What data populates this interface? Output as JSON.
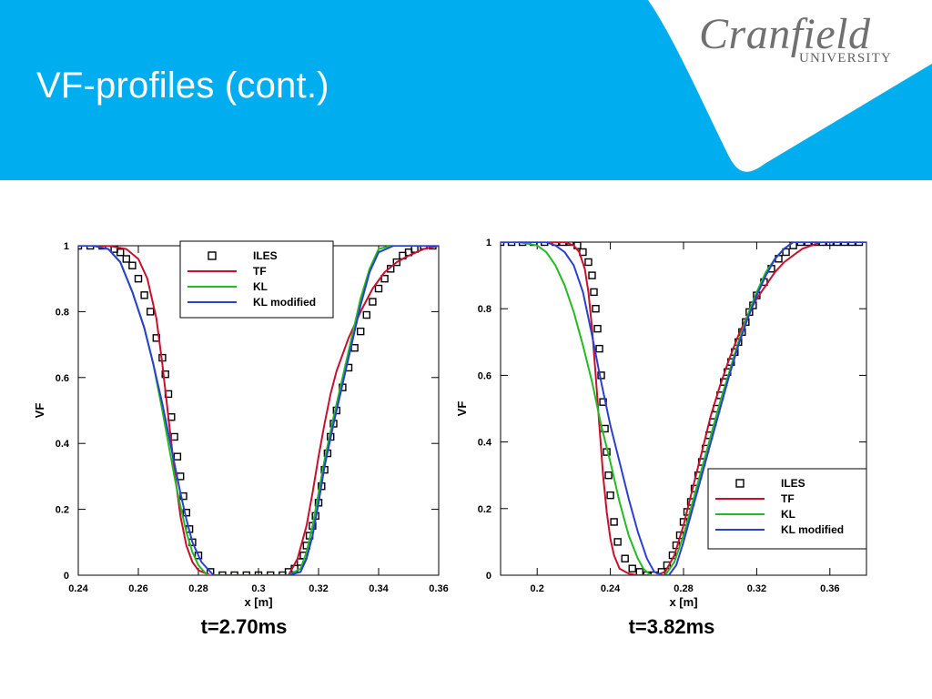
{
  "slide": {
    "title": "VF-profiles (cont.)",
    "banner_color": "#00AEEF"
  },
  "logo": {
    "word": "Cranfield",
    "sub": "UNIVERSITY"
  },
  "captions": [
    "t=2.70ms",
    "t=3.82ms"
  ],
  "chart_data": [
    {
      "type": "line",
      "xlabel": "x [m]",
      "ylabel": "VF",
      "xlim": [
        0.24,
        0.36
      ],
      "ylim": [
        0,
        1
      ],
      "xticks": [
        0.24,
        0.26,
        0.28,
        0.3,
        0.32,
        0.34,
        0.36
      ],
      "xtick_labels": [
        "0.24",
        "0.26",
        "0.28",
        "0.3",
        "0.32",
        "0.34",
        "0.36"
      ],
      "yticks": [
        0,
        0.2,
        0.4,
        0.6,
        0.8,
        1
      ],
      "ytick_labels": [
        "0",
        "0.2",
        "0.4",
        "0.6",
        "0.8",
        "1"
      ],
      "grid": false,
      "legend_position": "top-center",
      "series": [
        {
          "name": "ILES",
          "kind": "marker",
          "color": "#000000",
          "x": [
            0.24,
            0.244,
            0.248,
            0.252,
            0.254,
            0.256,
            0.258,
            0.26,
            0.262,
            0.264,
            0.266,
            0.268,
            0.269,
            0.27,
            0.271,
            0.272,
            0.273,
            0.274,
            0.275,
            0.276,
            0.277,
            0.278,
            0.28,
            0.284,
            0.288,
            0.292,
            0.296,
            0.3,
            0.304,
            0.308,
            0.31,
            0.312,
            0.314,
            0.315,
            0.316,
            0.317,
            0.318,
            0.319,
            0.32,
            0.321,
            0.322,
            0.323,
            0.324,
            0.325,
            0.326,
            0.328,
            0.33,
            0.332,
            0.334,
            0.336,
            0.338,
            0.34,
            0.342,
            0.344,
            0.346,
            0.348,
            0.35,
            0.352,
            0.355,
            0.358
          ],
          "y": [
            1.0,
            1.0,
            1.0,
            0.99,
            0.98,
            0.96,
            0.94,
            0.9,
            0.85,
            0.8,
            0.72,
            0.66,
            0.61,
            0.55,
            0.48,
            0.42,
            0.36,
            0.3,
            0.24,
            0.19,
            0.14,
            0.1,
            0.06,
            0.01,
            0.0,
            0.0,
            0.0,
            0.0,
            0.0,
            0.0,
            0.01,
            0.02,
            0.04,
            0.06,
            0.09,
            0.12,
            0.15,
            0.18,
            0.22,
            0.27,
            0.32,
            0.37,
            0.42,
            0.46,
            0.5,
            0.57,
            0.63,
            0.69,
            0.74,
            0.79,
            0.83,
            0.87,
            0.9,
            0.93,
            0.95,
            0.97,
            0.98,
            0.99,
            1.0,
            1.0
          ]
        },
        {
          "name": "TF",
          "kind": "line",
          "color": "#C8102E",
          "x": [
            0.24,
            0.25,
            0.256,
            0.26,
            0.263,
            0.266,
            0.268,
            0.27,
            0.272,
            0.274,
            0.276,
            0.278,
            0.28,
            0.284,
            0.3,
            0.31,
            0.313,
            0.316,
            0.318,
            0.32,
            0.322,
            0.324,
            0.326,
            0.33,
            0.334,
            0.338,
            0.342,
            0.346,
            0.35,
            0.355,
            0.36
          ],
          "y": [
            1.0,
            1.0,
            0.99,
            0.96,
            0.9,
            0.78,
            0.64,
            0.48,
            0.32,
            0.18,
            0.09,
            0.04,
            0.015,
            0.0,
            0.0,
            0.0,
            0.05,
            0.15,
            0.25,
            0.36,
            0.46,
            0.55,
            0.62,
            0.72,
            0.8,
            0.87,
            0.92,
            0.95,
            0.97,
            0.99,
            1.0
          ]
        },
        {
          "name": "KL",
          "kind": "line",
          "color": "#22BB22",
          "x": [
            0.24,
            0.245,
            0.25,
            0.254,
            0.258,
            0.262,
            0.265,
            0.268,
            0.27,
            0.272,
            0.274,
            0.276,
            0.278,
            0.28,
            0.283,
            0.3,
            0.31,
            0.314,
            0.316,
            0.318,
            0.32,
            0.322,
            0.325,
            0.328,
            0.331,
            0.334,
            0.337,
            0.34,
            0.344,
            0.35,
            0.36
          ],
          "y": [
            1.0,
            1.0,
            0.99,
            0.95,
            0.86,
            0.75,
            0.64,
            0.5,
            0.4,
            0.3,
            0.21,
            0.13,
            0.07,
            0.03,
            0.0,
            0.0,
            0.0,
            0.02,
            0.07,
            0.15,
            0.25,
            0.35,
            0.48,
            0.6,
            0.72,
            0.84,
            0.93,
            0.99,
            1.0,
            1.0,
            1.0
          ]
        },
        {
          "name": "KL modified",
          "kind": "line",
          "color": "#2B3FD1",
          "x": [
            0.24,
            0.245,
            0.25,
            0.254,
            0.258,
            0.262,
            0.265,
            0.268,
            0.27,
            0.272,
            0.274,
            0.276,
            0.278,
            0.281,
            0.285,
            0.3,
            0.31,
            0.314,
            0.316,
            0.318,
            0.32,
            0.322,
            0.325,
            0.328,
            0.331,
            0.334,
            0.337,
            0.34,
            0.345,
            0.35,
            0.36
          ],
          "y": [
            1.0,
            1.0,
            0.99,
            0.95,
            0.86,
            0.75,
            0.64,
            0.52,
            0.43,
            0.34,
            0.25,
            0.17,
            0.1,
            0.04,
            0.0,
            0.0,
            0.0,
            0.01,
            0.05,
            0.12,
            0.22,
            0.33,
            0.46,
            0.58,
            0.7,
            0.82,
            0.92,
            0.98,
            1.0,
            1.0,
            1.0
          ]
        }
      ]
    },
    {
      "type": "line",
      "xlabel": "x [m]",
      "ylabel": "VF",
      "xlim": [
        0.18,
        0.38
      ],
      "ylim": [
        0,
        1
      ],
      "xticks": [
        0.2,
        0.24,
        0.28,
        0.32,
        0.36
      ],
      "xtick_labels": [
        "0.2",
        "0.24",
        "0.28",
        "0.32",
        "0.36"
      ],
      "yticks": [
        0,
        0.2,
        0.4,
        0.6,
        0.8,
        1
      ],
      "ytick_labels": [
        "0",
        "0.2",
        "0.4",
        "0.6",
        "0.8",
        "1"
      ],
      "grid": false,
      "legend_position": "bottom-right",
      "series": [
        {
          "name": "ILES",
          "kind": "marker",
          "color": "#000000",
          "x": [
            0.18,
            0.186,
            0.192,
            0.198,
            0.204,
            0.21,
            0.214,
            0.218,
            0.222,
            0.225,
            0.228,
            0.23,
            0.231,
            0.232,
            0.233,
            0.234,
            0.235,
            0.236,
            0.237,
            0.238,
            0.239,
            0.24,
            0.242,
            0.244,
            0.248,
            0.252,
            0.256,
            0.26,
            0.264,
            0.268,
            0.271,
            0.274,
            0.276,
            0.278,
            0.28,
            0.282,
            0.284,
            0.286,
            0.288,
            0.29,
            0.292,
            0.294,
            0.296,
            0.298,
            0.3,
            0.302,
            0.304,
            0.306,
            0.308,
            0.31,
            0.312,
            0.314,
            0.316,
            0.318,
            0.32,
            0.324,
            0.328,
            0.332,
            0.336,
            0.34,
            0.344,
            0.348,
            0.352,
            0.356,
            0.36,
            0.364,
            0.368,
            0.372,
            0.376
          ],
          "y": [
            1.0,
            1.0,
            1.0,
            1.0,
            1.0,
            1.0,
            1.0,
            1.0,
            0.99,
            0.97,
            0.94,
            0.9,
            0.85,
            0.8,
            0.74,
            0.68,
            0.6,
            0.52,
            0.44,
            0.37,
            0.3,
            0.24,
            0.16,
            0.1,
            0.05,
            0.02,
            0.01,
            0.0,
            0.0,
            0.01,
            0.03,
            0.06,
            0.09,
            0.12,
            0.16,
            0.19,
            0.22,
            0.26,
            0.3,
            0.34,
            0.38,
            0.42,
            0.46,
            0.5,
            0.54,
            0.58,
            0.61,
            0.64,
            0.67,
            0.7,
            0.73,
            0.76,
            0.79,
            0.81,
            0.84,
            0.88,
            0.92,
            0.95,
            0.97,
            0.99,
            1.0,
            1.0,
            1.0,
            1.0,
            1.0,
            1.0,
            1.0,
            1.0,
            1.0
          ]
        },
        {
          "name": "TF",
          "kind": "line",
          "color": "#C8102E",
          "x": [
            0.18,
            0.2,
            0.215,
            0.22,
            0.223,
            0.226,
            0.228,
            0.23,
            0.232,
            0.234,
            0.236,
            0.238,
            0.24,
            0.242,
            0.245,
            0.25,
            0.255,
            0.265,
            0.27,
            0.275,
            0.28,
            0.285,
            0.29,
            0.295,
            0.3,
            0.305,
            0.31,
            0.315,
            0.32,
            0.325,
            0.33,
            0.335,
            0.34,
            0.345,
            0.35,
            0.355,
            0.36,
            0.38
          ],
          "y": [
            1.0,
            1.0,
            1.0,
            0.99,
            0.97,
            0.92,
            0.85,
            0.74,
            0.6,
            0.45,
            0.3,
            0.19,
            0.11,
            0.06,
            0.02,
            0.005,
            0.0,
            0.0,
            0.01,
            0.06,
            0.15,
            0.26,
            0.37,
            0.48,
            0.57,
            0.65,
            0.72,
            0.78,
            0.83,
            0.87,
            0.91,
            0.94,
            0.96,
            0.98,
            0.99,
            1.0,
            1.0,
            1.0
          ]
        },
        {
          "name": "KL",
          "kind": "line",
          "color": "#22BB22",
          "x": [
            0.18,
            0.19,
            0.2,
            0.205,
            0.21,
            0.215,
            0.22,
            0.225,
            0.23,
            0.235,
            0.24,
            0.245,
            0.25,
            0.255,
            0.258,
            0.262,
            0.266,
            0.27,
            0.275,
            0.28,
            0.285,
            0.29,
            0.295,
            0.3,
            0.305,
            0.31,
            0.315,
            0.32,
            0.325,
            0.33,
            0.335,
            0.34,
            0.38
          ],
          "y": [
            1.0,
            1.0,
            0.99,
            0.97,
            0.93,
            0.87,
            0.79,
            0.69,
            0.58,
            0.45,
            0.34,
            0.22,
            0.12,
            0.05,
            0.02,
            0.0,
            0.0,
            0.0,
            0.04,
            0.12,
            0.22,
            0.32,
            0.42,
            0.52,
            0.61,
            0.7,
            0.78,
            0.85,
            0.91,
            0.95,
            0.98,
            1.0,
            1.0
          ]
        },
        {
          "name": "KL modified",
          "kind": "line",
          "color": "#2B3FD1",
          "x": [
            0.18,
            0.2,
            0.205,
            0.21,
            0.215,
            0.22,
            0.225,
            0.23,
            0.235,
            0.24,
            0.245,
            0.25,
            0.255,
            0.26,
            0.264,
            0.268,
            0.272,
            0.276,
            0.28,
            0.285,
            0.29,
            0.295,
            0.3,
            0.305,
            0.31,
            0.315,
            0.32,
            0.325,
            0.33,
            0.335,
            0.34,
            0.38
          ],
          "y": [
            1.0,
            1.0,
            1.0,
            0.99,
            0.97,
            0.93,
            0.85,
            0.72,
            0.58,
            0.45,
            0.34,
            0.23,
            0.13,
            0.05,
            0.01,
            0.0,
            0.0,
            0.03,
            0.1,
            0.2,
            0.3,
            0.4,
            0.5,
            0.6,
            0.69,
            0.77,
            0.84,
            0.9,
            0.95,
            0.98,
            1.0,
            1.0
          ]
        }
      ]
    }
  ]
}
